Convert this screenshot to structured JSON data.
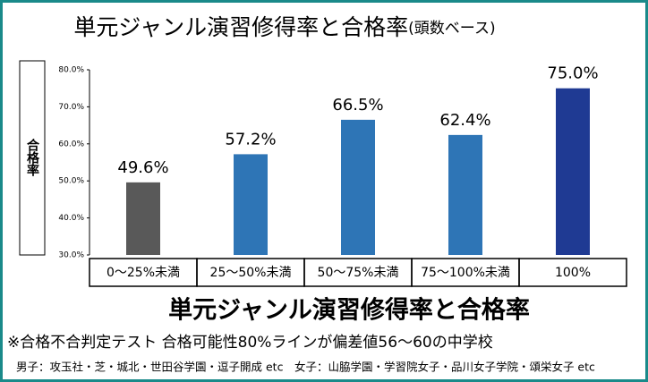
{
  "chart_data": {
    "type": "bar",
    "title": "単元ジャンル演習修得率と合格率",
    "subtitle": "(頭数ベース)",
    "y_label": "合格率",
    "x_label": "単元ジャンル演習修得率と合格率",
    "notes": [
      "※合格不合判定テスト 合格可能性80%ラインが偏差値56～60の中学校",
      "男子：攻玉社・芝・城北・世田谷学園・逗子開成 etc　女子：山脇学園・学習院女子・品川女子学院・頌栄女子 etc"
    ],
    "categories": [
      "0～25%未満",
      "25～50%未満",
      "50～75%未満",
      "75～100%未満",
      "100%"
    ],
    "values": [
      49.6,
      57.2,
      66.5,
      62.4,
      75.0
    ],
    "value_labels": [
      "49.6%",
      "57.2%",
      "66.5%",
      "62.4%",
      "75.0%"
    ],
    "colors": [
      "#595959",
      "#2e75b6",
      "#2e75b6",
      "#2e75b6",
      "#1f3a93"
    ],
    "ylim": [
      30,
      80
    ],
    "yticks": [
      {
        "value": 30,
        "label": "30.0%"
      },
      {
        "value": 40,
        "label": "40.0%"
      },
      {
        "value": 50,
        "label": "50.0%"
      },
      {
        "value": 60,
        "label": "60.0%"
      },
      {
        "value": 70,
        "label": "70.0%"
      },
      {
        "value": 80,
        "label": "80.0%"
      }
    ]
  }
}
